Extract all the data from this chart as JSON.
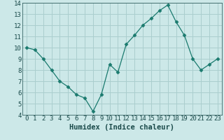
{
  "x": [
    0,
    1,
    2,
    3,
    4,
    5,
    6,
    7,
    8,
    9,
    10,
    11,
    12,
    13,
    14,
    15,
    16,
    17,
    18,
    19,
    20,
    21,
    22,
    23
  ],
  "y": [
    10.0,
    9.8,
    9.0,
    8.0,
    7.0,
    6.5,
    5.8,
    5.5,
    4.3,
    5.8,
    8.5,
    7.8,
    10.3,
    11.1,
    12.0,
    12.6,
    13.3,
    13.8,
    12.3,
    11.1,
    9.0,
    8.0,
    8.5,
    9.0
  ],
  "line_color": "#1a7a6e",
  "marker": "D",
  "marker_size": 2.5,
  "bg_color": "#cce8e8",
  "grid_color": "#aacece",
  "xlabel": "Humidex (Indice chaleur)",
  "xlim": [
    -0.5,
    23.5
  ],
  "ylim": [
    4,
    14
  ],
  "yticks": [
    4,
    5,
    6,
    7,
    8,
    9,
    10,
    11,
    12,
    13,
    14
  ],
  "xticks": [
    0,
    1,
    2,
    3,
    4,
    5,
    6,
    7,
    8,
    9,
    10,
    11,
    12,
    13,
    14,
    15,
    16,
    17,
    18,
    19,
    20,
    21,
    22,
    23
  ],
  "xlabel_fontsize": 7.5,
  "tick_fontsize": 6.5,
  "label_color": "#1a4a4a"
}
